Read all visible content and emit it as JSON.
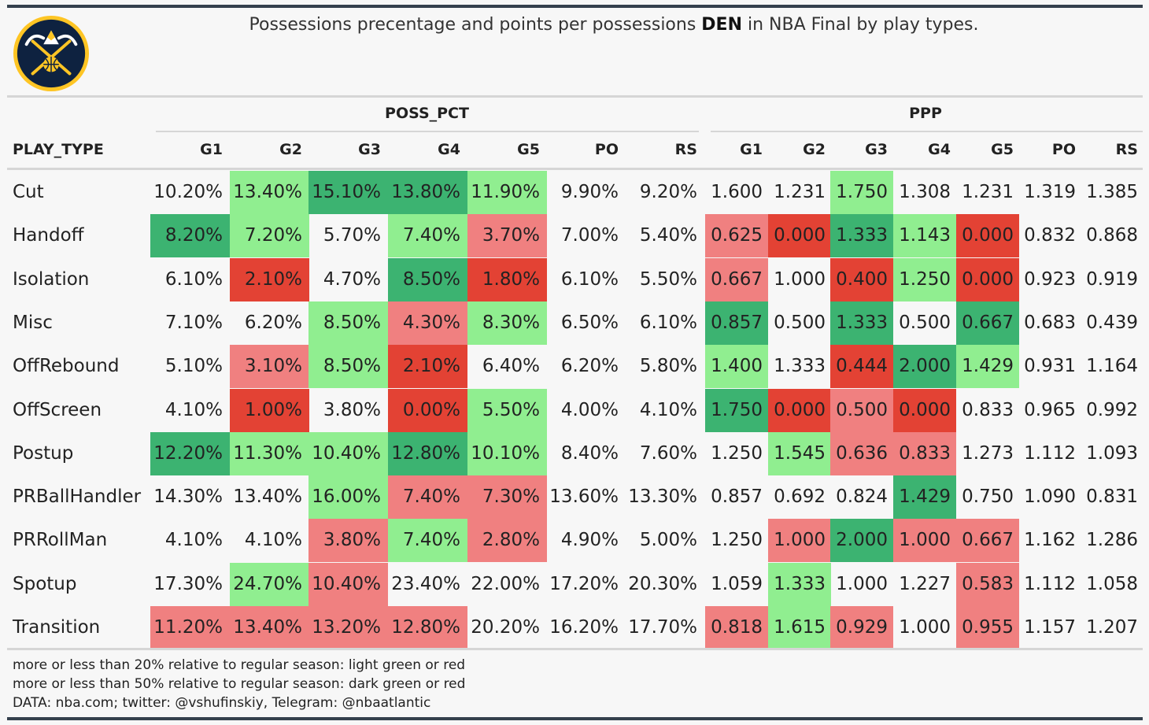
{
  "title": {
    "before": "Possessions precentage and points per possessions ",
    "team": "DEN",
    "after": " in NBA Final by play types."
  },
  "logo": {
    "name": "denver-nuggets-logo",
    "colors": {
      "navy": "#0e2240",
      "gold": "#fec524",
      "blue": "#1d428a"
    }
  },
  "colors": {
    "light_green": "#90ee90",
    "dark_green": "#3cb371",
    "light_red": "#f08080",
    "dark_red": "#e34234"
  },
  "chart_data": {
    "type": "table",
    "columns_label": "PLAY_TYPE",
    "groups": [
      {
        "name": "POSS_PCT",
        "columns": [
          "G1",
          "G2",
          "G3",
          "G4",
          "G5",
          "PO",
          "RS"
        ]
      },
      {
        "name": "PPP",
        "columns": [
          "G1",
          "G2",
          "G3",
          "G4",
          "G5",
          "PO",
          "RS"
        ]
      }
    ],
    "rows": [
      {
        "play_type": "Cut",
        "poss_pct": [
          "10.20%",
          "13.40%",
          "15.10%",
          "13.80%",
          "11.90%",
          "9.90%",
          "9.20%"
        ],
        "poss_class": [
          "",
          "lg",
          "dg",
          "dg",
          "lg",
          "",
          ""
        ],
        "ppp": [
          "1.600",
          "1.231",
          "1.750",
          "1.308",
          "1.231",
          "1.319",
          "1.385"
        ],
        "ppp_class": [
          "",
          "",
          "lg",
          "",
          "",
          "",
          ""
        ]
      },
      {
        "play_type": "Handoff",
        "poss_pct": [
          "8.20%",
          "7.20%",
          "5.70%",
          "7.40%",
          "3.70%",
          "7.00%",
          "5.40%"
        ],
        "poss_class": [
          "dg",
          "lg",
          "",
          "lg",
          "lr",
          "",
          ""
        ],
        "ppp": [
          "0.625",
          "0.000",
          "1.333",
          "1.143",
          "0.000",
          "0.832",
          "0.868"
        ],
        "ppp_class": [
          "lr",
          "dr",
          "dg",
          "lg",
          "dr",
          "",
          ""
        ]
      },
      {
        "play_type": "Isolation",
        "poss_pct": [
          "6.10%",
          "2.10%",
          "4.70%",
          "8.50%",
          "1.80%",
          "6.10%",
          "5.50%"
        ],
        "poss_class": [
          "",
          "dr",
          "",
          "dg",
          "dr",
          "",
          ""
        ],
        "ppp": [
          "0.667",
          "1.000",
          "0.400",
          "1.250",
          "0.000",
          "0.923",
          "0.919"
        ],
        "ppp_class": [
          "lr",
          "",
          "dr",
          "lg",
          "dr",
          "",
          ""
        ]
      },
      {
        "play_type": "Misc",
        "poss_pct": [
          "7.10%",
          "6.20%",
          "8.50%",
          "4.30%",
          "8.30%",
          "6.50%",
          "6.10%"
        ],
        "poss_class": [
          "",
          "",
          "lg",
          "lr",
          "lg",
          "",
          ""
        ],
        "ppp": [
          "0.857",
          "0.500",
          "1.333",
          "0.500",
          "0.667",
          "0.683",
          "0.439"
        ],
        "ppp_class": [
          "dg",
          "",
          "dg",
          "",
          "dg",
          "",
          ""
        ]
      },
      {
        "play_type": "OffRebound",
        "poss_pct": [
          "5.10%",
          "3.10%",
          "8.50%",
          "2.10%",
          "6.40%",
          "6.20%",
          "5.80%"
        ],
        "poss_class": [
          "",
          "lr",
          "lg",
          "dr",
          "",
          "",
          ""
        ],
        "ppp": [
          "1.400",
          "1.333",
          "0.444",
          "2.000",
          "1.429",
          "0.931",
          "1.164"
        ],
        "ppp_class": [
          "lg",
          "",
          "dr",
          "dg",
          "lg",
          "",
          ""
        ]
      },
      {
        "play_type": "OffScreen",
        "poss_pct": [
          "4.10%",
          "1.00%",
          "3.80%",
          "0.00%",
          "5.50%",
          "4.00%",
          "4.10%"
        ],
        "poss_class": [
          "",
          "dr",
          "",
          "dr",
          "lg",
          "",
          ""
        ],
        "ppp": [
          "1.750",
          "0.000",
          "0.500",
          "0.000",
          "0.833",
          "0.965",
          "0.992"
        ],
        "ppp_class": [
          "dg",
          "dr",
          "lr",
          "dr",
          "",
          "",
          ""
        ]
      },
      {
        "play_type": "Postup",
        "poss_pct": [
          "12.20%",
          "11.30%",
          "10.40%",
          "12.80%",
          "10.10%",
          "8.40%",
          "7.60%"
        ],
        "poss_class": [
          "dg",
          "lg",
          "lg",
          "dg",
          "lg",
          "",
          ""
        ],
        "ppp": [
          "1.250",
          "1.545",
          "0.636",
          "0.833",
          "1.273",
          "1.112",
          "1.093"
        ],
        "ppp_class": [
          "",
          "lg",
          "lr",
          "lr",
          "",
          "",
          ""
        ]
      },
      {
        "play_type": "PRBallHandler",
        "poss_pct": [
          "14.30%",
          "13.40%",
          "16.00%",
          "7.40%",
          "7.30%",
          "13.60%",
          "13.30%"
        ],
        "poss_class": [
          "",
          "",
          "lg",
          "lr",
          "lr",
          "",
          ""
        ],
        "ppp": [
          "0.857",
          "0.692",
          "0.824",
          "1.429",
          "0.750",
          "1.090",
          "0.831"
        ],
        "ppp_class": [
          "",
          "",
          "",
          "dg",
          "",
          "",
          ""
        ]
      },
      {
        "play_type": "PRRollMan",
        "poss_pct": [
          "4.10%",
          "4.10%",
          "3.80%",
          "7.40%",
          "2.80%",
          "4.90%",
          "5.00%"
        ],
        "poss_class": [
          "",
          "",
          "lr",
          "lg",
          "lr",
          "",
          ""
        ],
        "ppp": [
          "1.250",
          "1.000",
          "2.000",
          "1.000",
          "0.667",
          "1.162",
          "1.286"
        ],
        "ppp_class": [
          "",
          "lr",
          "dg",
          "lr",
          "lr",
          "",
          ""
        ]
      },
      {
        "play_type": "Spotup",
        "poss_pct": [
          "17.30%",
          "24.70%",
          "10.40%",
          "23.40%",
          "22.00%",
          "17.20%",
          "20.30%"
        ],
        "poss_class": [
          "",
          "lg",
          "lr",
          "",
          "",
          "",
          ""
        ],
        "ppp": [
          "1.059",
          "1.333",
          "1.000",
          "1.227",
          "0.583",
          "1.112",
          "1.058"
        ],
        "ppp_class": [
          "",
          "lg",
          "",
          "",
          "lr",
          "",
          ""
        ]
      },
      {
        "play_type": "Transition",
        "poss_pct": [
          "11.20%",
          "13.40%",
          "13.20%",
          "12.80%",
          "20.20%",
          "16.20%",
          "17.70%"
        ],
        "poss_class": [
          "lr",
          "lr",
          "lr",
          "lr",
          "",
          "",
          ""
        ],
        "ppp": [
          "0.818",
          "1.615",
          "0.929",
          "1.000",
          "0.955",
          "1.157",
          "1.207"
        ],
        "ppp_class": [
          "lr",
          "lg",
          "lr",
          "",
          "lr",
          "",
          ""
        ]
      }
    ]
  },
  "footer": {
    "line1": "more or less than 20% relative to regular season: light green or red",
    "line2": "more or less than 50% relative to regular season: dark green or red",
    "line3": "DATA: nba.com; twitter: @vshufinskiy, Telegram: @nbaatlantic"
  }
}
